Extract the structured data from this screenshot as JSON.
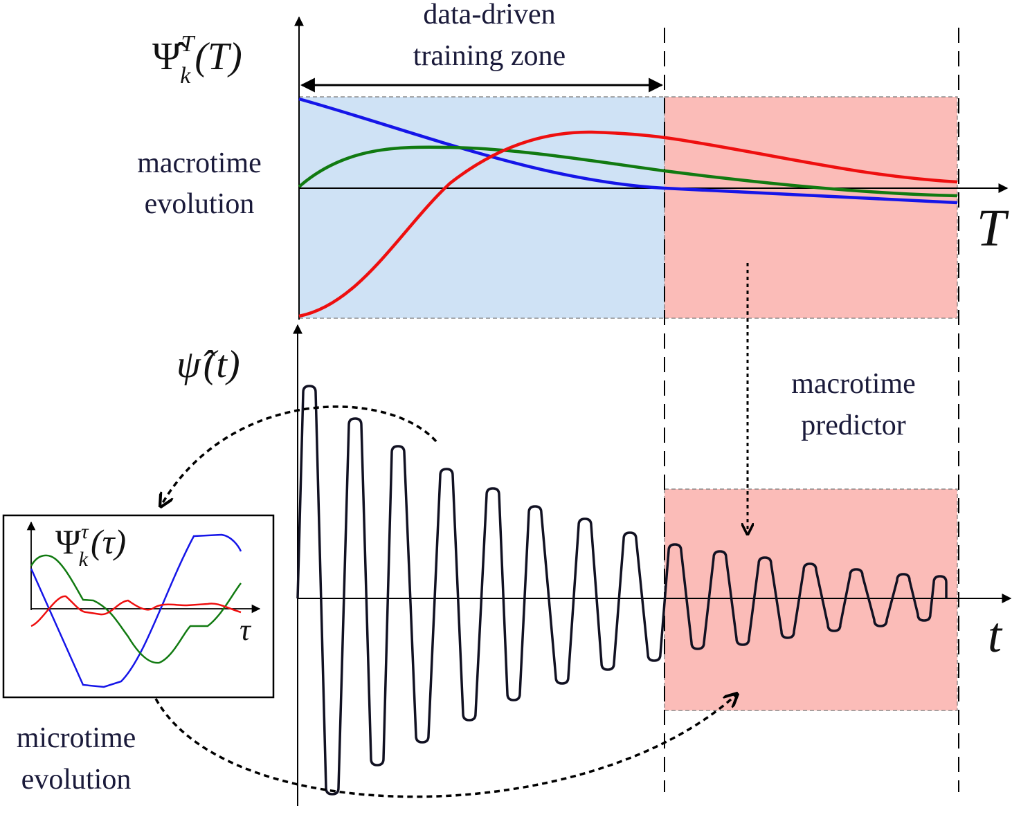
{
  "top_panel": {
    "zone_label": [
      "data-driven",
      "training zone"
    ],
    "side_label": [
      "macrotime",
      "evolution"
    ],
    "axis_label": "T",
    "y_label": {
      "base": "Ψ̂",
      "sup": "T",
      "sub": "k",
      "arg": "(T)"
    }
  },
  "bottom_panel": {
    "y_label": {
      "base": "ψ̂",
      "arg": "(t)"
    },
    "axis_label": "t",
    "predictor_label": [
      "macrotime",
      "predictor"
    ]
  },
  "inset": {
    "y_label": {
      "base": "Ψ",
      "sup": "τ",
      "sub": "k",
      "arg": "(τ)"
    },
    "axis_label": "τ",
    "caption": [
      "microtime",
      "evolution"
    ]
  }
}
